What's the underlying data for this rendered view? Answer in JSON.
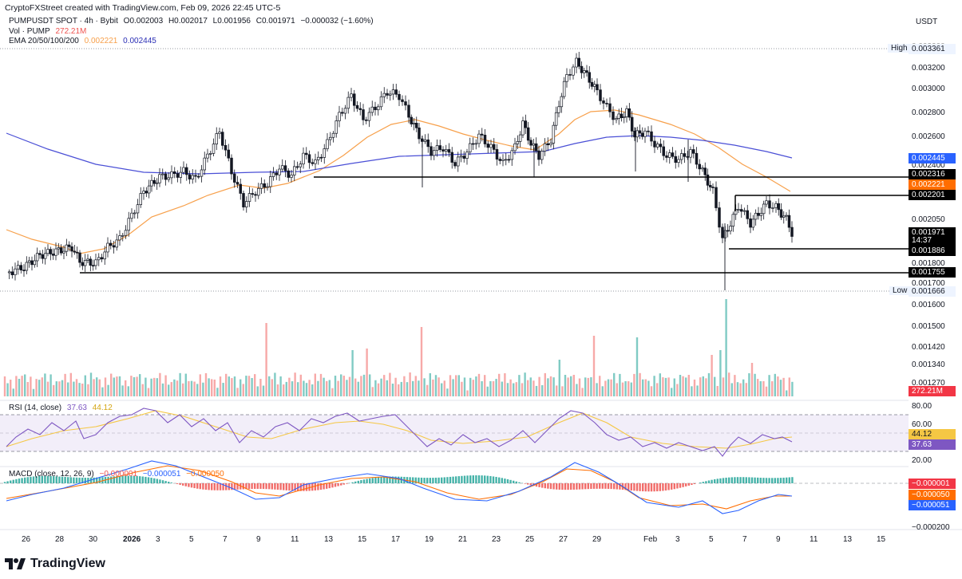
{
  "header": {
    "credit": "CryptoFXStreet created with TradingView.com, Feb 09, 2026 22:45 UTC-5",
    "currency": "USDT"
  },
  "legend": {
    "symbol": "PUMPUSDT SPOT · 4h · Bybit",
    "open": "O0.002003",
    "high": "H0.002017",
    "low": "L0.001956",
    "close": "C0.001971",
    "change": "−0.000032 (−1.60%)",
    "vol_label": "Vol · PUMP",
    "vol_value": "272.21M",
    "ema_label": "EMA 20/50/100/200",
    "ema_val1": "0.002221",
    "ema_val2": "0.002445"
  },
  "price_axis": {
    "ticks": [
      "0.003200",
      "0.003000",
      "0.002800",
      "0.002600",
      "0.002400",
      "0.002050",
      "0.001800",
      "0.001700",
      "0.001600",
      "0.001500",
      "0.001420",
      "0.001340",
      "0.001270"
    ],
    "high_label": "High",
    "high_value": "0.003361",
    "low_label": "Low",
    "low_value": "0.001666",
    "tags": {
      "ema200": "0.002445",
      "level1": "0.002316",
      "ema100": "0.002221",
      "level2": "0.002201",
      "last": "0.001971",
      "countdown": "14:37",
      "level3": "0.001886",
      "level4": "0.001755",
      "volume": "272.21M"
    }
  },
  "rsi": {
    "label": "RSI (14, close)",
    "value1": "37.63",
    "value2": "44.12",
    "ticks": [
      "80.00",
      "60.00",
      "20.00"
    ]
  },
  "macd": {
    "label": "MACD (close, 12, 26, 9)",
    "v1": "−0.000001",
    "v2": "−0.000051",
    "v3": "−0.000050",
    "tags": [
      "−0.000001",
      "−0.000050",
      "−0.000051"
    ],
    "bottom_tick": "−0.000200"
  },
  "time_axis": [
    "26",
    "28",
    "30",
    "2026",
    "3",
    "5",
    "7",
    "9",
    "11",
    "13",
    "15",
    "17",
    "19",
    "21",
    "23",
    "25",
    "27",
    "29",
    "Feb",
    "3",
    "5",
    "7",
    "9",
    "11",
    "13",
    "15"
  ],
  "colors": {
    "up": "#26a69a",
    "down": "#ef5350",
    "ema_orange": "#f7a04b",
    "ema_blue": "#4a4fd6",
    "rsi": "#7e57c2",
    "tag_blue": "#2962ff",
    "tag_orange": "#ff6d00",
    "tag_red": "#f23645"
  },
  "brand": "TradingView"
}
